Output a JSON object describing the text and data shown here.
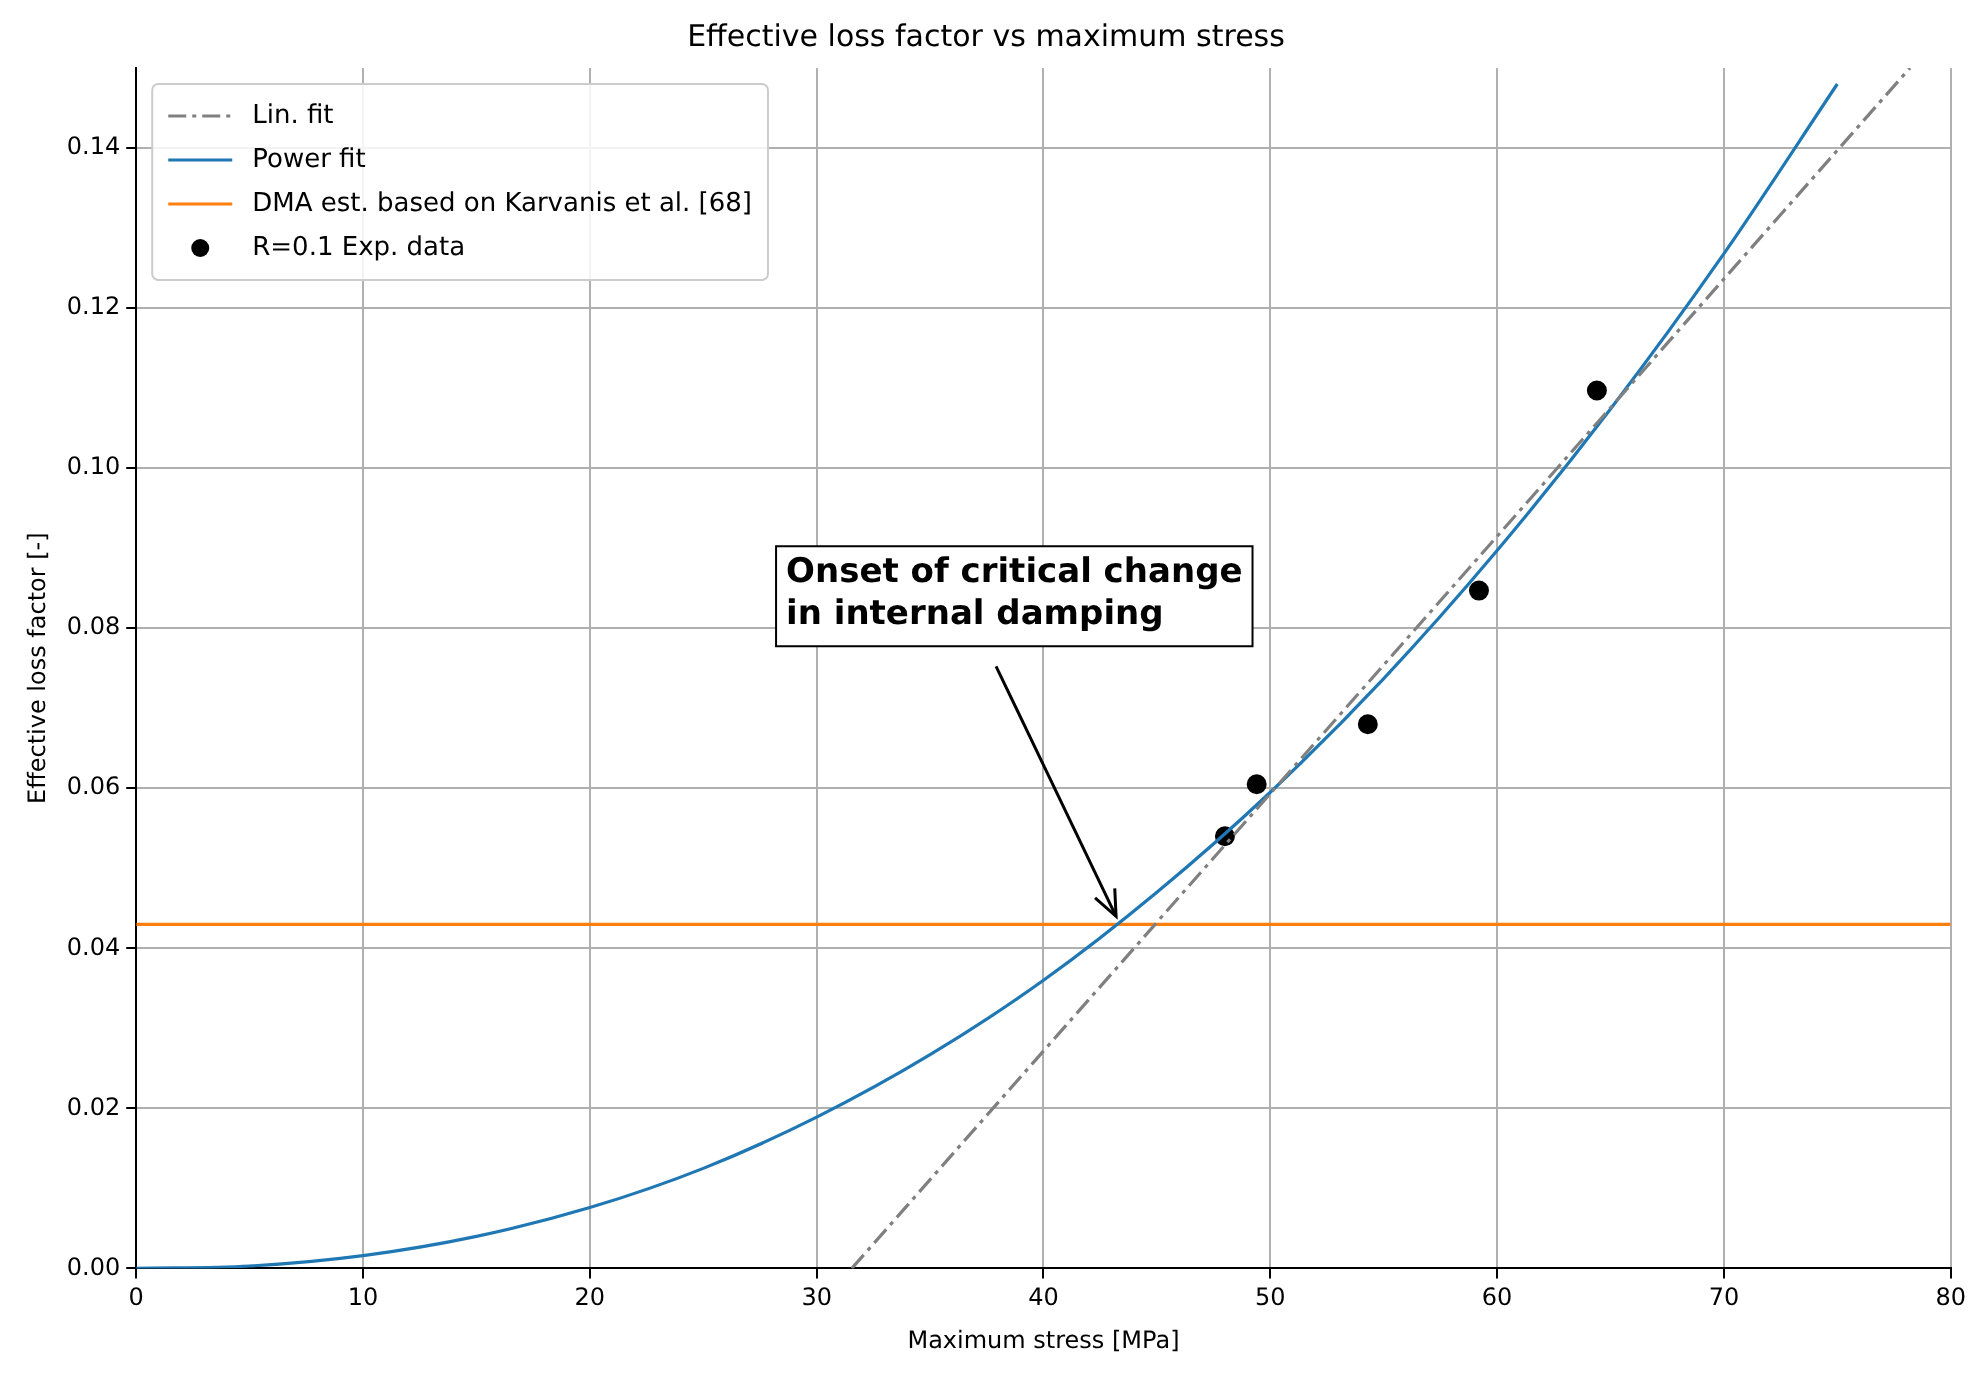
{
  "chart_data": {
    "type": "line",
    "title": "Effective loss factor vs maximum stress",
    "xlabel": "Maximum stress [MPa]",
    "ylabel": "Effective loss factor [-]",
    "xlim": [
      0,
      80
    ],
    "xticks": [
      0,
      10,
      20,
      30,
      40,
      50,
      60,
      70,
      80
    ],
    "ylim": [
      0,
      0.15
    ],
    "yticks": [
      {
        "value": 0,
        "label": "0.00"
      },
      {
        "value": 0.02,
        "label": "0.02"
      },
      {
        "value": 0.04,
        "label": "0.04"
      },
      {
        "value": 0.06,
        "label": "0.06"
      },
      {
        "value": 0.08,
        "label": "0.08"
      },
      {
        "value": 0.1,
        "label": "0.10"
      },
      {
        "value": 0.12,
        "label": "0.12"
      },
      {
        "value": 0.14,
        "label": "0.14"
      }
    ],
    "grid": true,
    "legend": "top left",
    "series": [
      {
        "name": "Lin. fit",
        "line_style": "dashdot",
        "color": "#808080",
        "x": [
          31.55,
          78.2
        ],
        "values": [
          0,
          0.15
        ]
      },
      {
        "name": "Power fit",
        "line_style": "solid",
        "color": "#1f77b4",
        "x": [
          0,
          5,
          10,
          15,
          20,
          25,
          30,
          35,
          40,
          45,
          50,
          55,
          60,
          65,
          70,
          75
        ],
        "values": [
          0,
          0.0003,
          0.0016,
          0.004,
          0.0076,
          0.0125,
          0.0189,
          0.0267,
          0.036,
          0.047,
          0.0595,
          0.0737,
          0.0897,
          0.1074,
          0.1268,
          0.148
        ]
      },
      {
        "name": "DMA est. based on Karvanis et al. [68]",
        "line_style": "solid",
        "color": "#ff7f0e",
        "x": [
          0,
          80
        ],
        "values": [
          0.043,
          0.043
        ]
      },
      {
        "name": "R=0.1 Exp. data",
        "type": "scatter",
        "marker": "circle",
        "color": "#000000",
        "x": [
          48.0,
          49.4,
          54.3,
          59.2,
          64.4
        ],
        "values": [
          0.054,
          0.0605,
          0.068,
          0.0847,
          0.1097
        ]
      }
    ],
    "annotations": [
      {
        "text": "Onset of critical change\nin internal damping",
        "x": 43.2,
        "y": 0.044
      }
    ]
  }
}
